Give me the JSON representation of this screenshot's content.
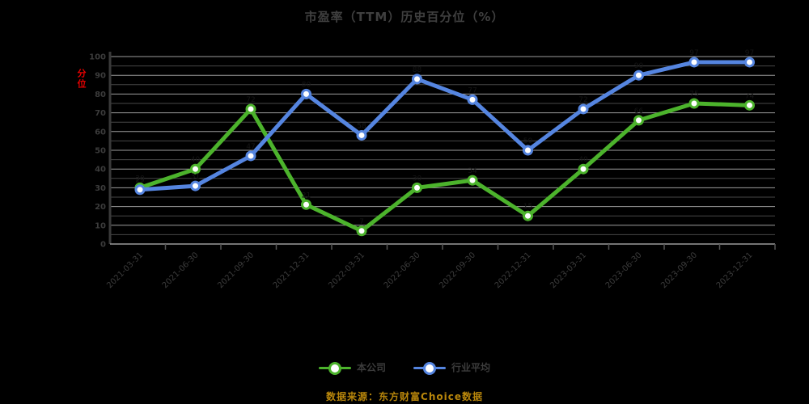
{
  "title": "市盈率（TTM）历史百分位（%）",
  "y_axis_unit": "分位",
  "source_note": "数据来源：东方财富Choice数据",
  "colors": {
    "background": "#000000",
    "title_text": "#3f3f3f",
    "axis_text": "#3c3c3c",
    "grid_major": "#b9b9b9",
    "grid_minor": "#474747",
    "axis_line": "#9a9a9a",
    "y_axis_line": "#3a3a3a",
    "unit_red": "#e60000",
    "source_text": "#b8860b",
    "series_green": "#4cb32c",
    "series_blue": "#5585e0",
    "data_label": "#161616"
  },
  "legend": [
    {
      "label": "本公司",
      "color": "#4cb32c"
    },
    {
      "label": "行业平均",
      "color": "#5585e0"
    }
  ],
  "chart_data": {
    "type": "line",
    "x": [
      "2021-03-31",
      "2021-06-30",
      "2021-09-30",
      "2021-12-31",
      "2022-03-31",
      "2022-06-30",
      "2022-09-30",
      "2022-12-31",
      "2023-03-31",
      "2023-06-30",
      "2023-09-30",
      "2023-12-31"
    ],
    "series": [
      {
        "name": "本公司",
        "color": "#4cb32c",
        "values": [
          30,
          40,
          72,
          21,
          7,
          30,
          34,
          15,
          40,
          66,
          75,
          74
        ]
      },
      {
        "name": "行业平均",
        "color": "#5585e0",
        "values": [
          29,
          31,
          47,
          80,
          58,
          88,
          77,
          50,
          72,
          90,
          97,
          97
        ]
      }
    ],
    "ylim": [
      0,
      100
    ],
    "yticks": [
      0,
      10,
      20,
      30,
      40,
      50,
      60,
      70,
      80,
      90,
      100
    ],
    "grid": "on",
    "legend_position": "bottom",
    "xlabel": "",
    "ylabel": "分位"
  }
}
